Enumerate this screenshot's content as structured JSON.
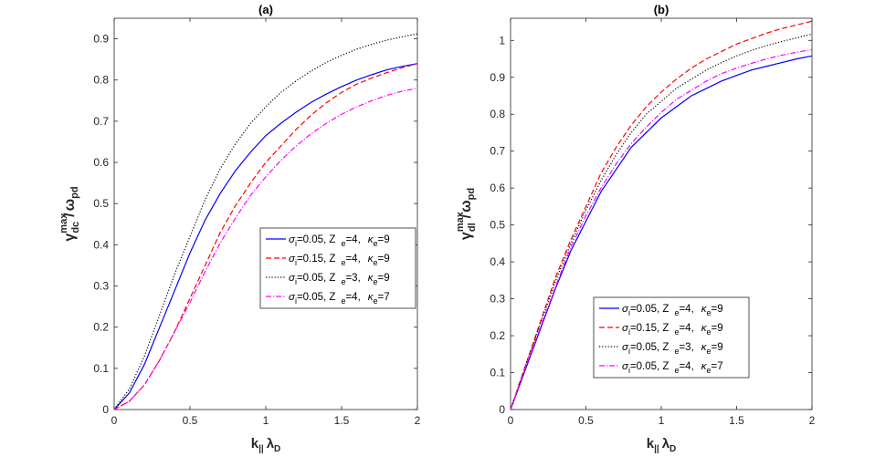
{
  "chart_data": [
    {
      "type": "line",
      "panel": "(a)",
      "title": "(a)",
      "xlabel": {
        "base": "k",
        "sub": "||",
        "greek": "λ",
        "greek_sub": "D"
      },
      "ylabel": {
        "base": "γ",
        "sup": "max",
        "sub": "dc",
        "slash": "/",
        "greek": "ω",
        "greek_sub": "pd"
      },
      "xlim": [
        0,
        2
      ],
      "ylim": [
        0,
        0.95
      ],
      "xticks": [
        0,
        0.5,
        1,
        1.5,
        2
      ],
      "xtick_labels": [
        "0",
        "0.5",
        "1",
        "1.5",
        "2"
      ],
      "yticks": [
        0,
        0.1,
        0.2,
        0.3,
        0.4,
        0.5,
        0.6,
        0.7,
        0.8,
        0.9
      ],
      "ytick_labels": [
        "0",
        "0.1",
        "0.2",
        "0.3",
        "0.4",
        "0.5",
        "0.6",
        "0.7",
        "0.8",
        "0.9"
      ],
      "legend_position": "center-right",
      "x": [
        0,
        0.1,
        0.2,
        0.3,
        0.4,
        0.5,
        0.6,
        0.7,
        0.8,
        0.9,
        1.0,
        1.1,
        1.2,
        1.3,
        1.4,
        1.5,
        1.6,
        1.7,
        1.8,
        1.9,
        2.0
      ],
      "series": [
        {
          "name": "σi=0.05, Z e=4, κe=9",
          "sigma_val": "0.05",
          "z_val": "4",
          "kappa_val": "9",
          "color": "#0000ff",
          "dash": "solid",
          "values": [
            0,
            0.04,
            0.11,
            0.2,
            0.29,
            0.38,
            0.46,
            0.525,
            0.58,
            0.625,
            0.665,
            0.695,
            0.722,
            0.746,
            0.766,
            0.784,
            0.8,
            0.813,
            0.825,
            0.833,
            0.84
          ]
        },
        {
          "name": "σi=0.15, Z e=4, κe=9",
          "sigma_val": "0.15",
          "z_val": "4",
          "kappa_val": "9",
          "color": "#ff0000",
          "dash": "dashed",
          "values": [
            0,
            0.02,
            0.06,
            0.12,
            0.19,
            0.27,
            0.35,
            0.43,
            0.495,
            0.55,
            0.6,
            0.64,
            0.68,
            0.715,
            0.745,
            0.77,
            0.79,
            0.805,
            0.818,
            0.83,
            0.84
          ]
        },
        {
          "name": "σi=0.05, Z e=3, κe=9",
          "sigma_val": "0.05",
          "z_val": "3",
          "kappa_val": "9",
          "color": "#000000",
          "dash": "dotted",
          "values": [
            0,
            0.05,
            0.13,
            0.23,
            0.33,
            0.42,
            0.51,
            0.585,
            0.645,
            0.695,
            0.735,
            0.77,
            0.798,
            0.822,
            0.843,
            0.86,
            0.875,
            0.887,
            0.897,
            0.905,
            0.912
          ]
        },
        {
          "name": "σi=0.05, Z e=4, κe=7",
          "sigma_val": "0.05",
          "z_val": "4",
          "kappa_val": "7",
          "color": "#ff00ff",
          "dash": "dashdot",
          "values": [
            0,
            0.02,
            0.06,
            0.12,
            0.19,
            0.26,
            0.335,
            0.405,
            0.465,
            0.52,
            0.565,
            0.605,
            0.64,
            0.67,
            0.695,
            0.717,
            0.735,
            0.75,
            0.763,
            0.773,
            0.78
          ]
        }
      ]
    },
    {
      "type": "line",
      "panel": "(b)",
      "title": "(b)",
      "xlabel": {
        "base": "k",
        "sub": "||",
        "greek": "λ",
        "greek_sub": "D"
      },
      "ylabel": {
        "base": "γ",
        "sup": "max",
        "sub": "dl",
        "slash": "/",
        "greek": "ω",
        "greek_sub": "pd"
      },
      "xlim": [
        0,
        2
      ],
      "ylim": [
        0,
        1.06
      ],
      "xticks": [
        0,
        0.5,
        1,
        1.5,
        2
      ],
      "xtick_labels": [
        "0",
        "0.5",
        "1",
        "1.5",
        "2"
      ],
      "yticks": [
        0,
        0.1,
        0.2,
        0.3,
        0.4,
        0.5,
        0.6,
        0.7,
        0.8,
        0.9,
        1
      ],
      "ytick_labels": [
        "0",
        "0.1",
        "0.2",
        "0.3",
        "0.4",
        "0.5",
        "0.6",
        "0.7",
        "0.8",
        "0.9",
        "1"
      ],
      "legend_position": "lower-right",
      "x": [
        0,
        0.1,
        0.2,
        0.3,
        0.4,
        0.5,
        0.6,
        0.7,
        0.8,
        0.9,
        1.0,
        1.1,
        1.2,
        1.3,
        1.4,
        1.5,
        1.6,
        1.7,
        1.8,
        1.9,
        2.0
      ],
      "series": [
        {
          "name": "σi=0.05, Z e=4, κe=9",
          "sigma_val": "0.05",
          "z_val": "4",
          "kappa_val": "9",
          "color": "#0000ff",
          "dash": "solid",
          "values": [
            0,
            0.11,
            0.22,
            0.33,
            0.43,
            0.51,
            0.59,
            0.65,
            0.71,
            0.75,
            0.79,
            0.82,
            0.85,
            0.87,
            0.89,
            0.905,
            0.92,
            0.93,
            0.94,
            0.95,
            0.958
          ]
        },
        {
          "name": "σi=0.15, Z e=4, κe=9",
          "sigma_val": "0.15",
          "z_val": "4",
          "kappa_val": "9",
          "color": "#ff0000",
          "dash": "dashed",
          "values": [
            0,
            0.12,
            0.24,
            0.36,
            0.46,
            0.55,
            0.64,
            0.71,
            0.77,
            0.82,
            0.86,
            0.895,
            0.925,
            0.95,
            0.97,
            0.99,
            1.005,
            1.02,
            1.032,
            1.042,
            1.052
          ]
        },
        {
          "name": "σi=0.05, Z e=3, κe=9",
          "sigma_val": "0.05",
          "z_val": "3",
          "kappa_val": "9",
          "color": "#000000",
          "dash": "dotted",
          "values": [
            0,
            0.12,
            0.235,
            0.35,
            0.45,
            0.54,
            0.62,
            0.69,
            0.75,
            0.8,
            0.835,
            0.87,
            0.895,
            0.92,
            0.94,
            0.958,
            0.973,
            0.986,
            0.997,
            1.007,
            1.017
          ]
        },
        {
          "name": "σi=0.05, Z e=4, κe=7",
          "sigma_val": "0.05",
          "z_val": "4",
          "kappa_val": "7",
          "color": "#ff00ff",
          "dash": "dashdot",
          "values": [
            0,
            0.115,
            0.225,
            0.335,
            0.44,
            0.525,
            0.6,
            0.665,
            0.72,
            0.765,
            0.805,
            0.84,
            0.865,
            0.89,
            0.91,
            0.925,
            0.938,
            0.95,
            0.96,
            0.968,
            0.975
          ]
        }
      ]
    }
  ]
}
